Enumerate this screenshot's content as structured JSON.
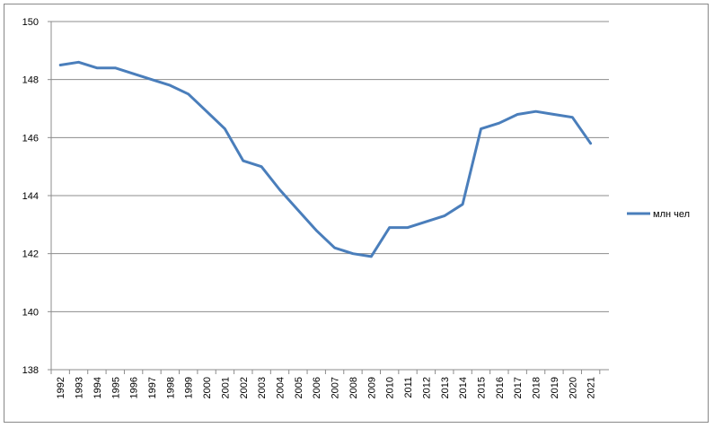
{
  "chart_data": {
    "type": "line",
    "title": "",
    "xlabel": "",
    "ylabel": "",
    "x": [
      "1992",
      "1993",
      "1994",
      "1995",
      "1996",
      "1997",
      "1998",
      "1999",
      "2000",
      "2001",
      "2002",
      "2003",
      "2004",
      "2005",
      "2006",
      "2007",
      "2008",
      "2009",
      "2010",
      "2011",
      "2012",
      "2013",
      "2014",
      "2015",
      "2016",
      "2017",
      "2018",
      "2019",
      "2020",
      "2021"
    ],
    "series": [
      {
        "name": "млн чел",
        "color": "#4a7ebb",
        "values": [
          148.5,
          148.6,
          148.4,
          148.4,
          148.2,
          148.0,
          147.8,
          147.5,
          146.9,
          146.3,
          145.2,
          145.0,
          144.2,
          143.5,
          142.8,
          142.2,
          142.0,
          141.9,
          142.9,
          142.9,
          143.1,
          143.3,
          143.7,
          146.3,
          146.5,
          146.8,
          146.9,
          146.8,
          146.7,
          145.8
        ]
      }
    ],
    "ylim": [
      138,
      150
    ],
    "yticks": [
      "138",
      "140",
      "142",
      "144",
      "146",
      "148",
      "150"
    ],
    "grid": true,
    "legend_position": "right"
  }
}
